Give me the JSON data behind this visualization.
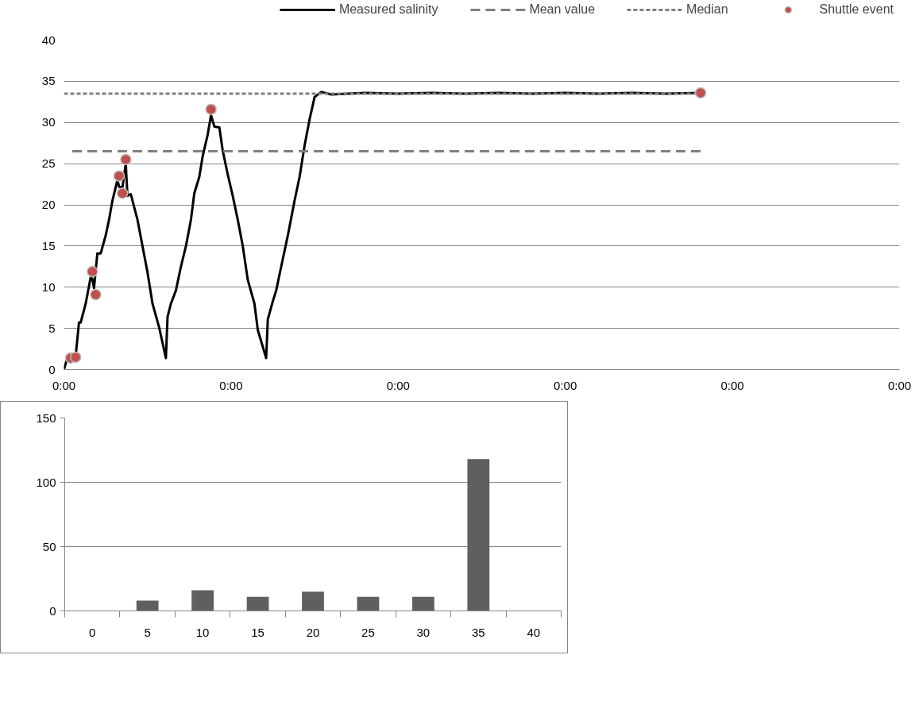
{
  "chart_data": [
    {
      "type": "line",
      "xlim": [
        0,
        5
      ],
      "ylim": [
        0,
        40
      ],
      "xticks": [
        {
          "value": 0,
          "label": "0:00"
        },
        {
          "value": 1,
          "label": "0:00"
        },
        {
          "value": 2,
          "label": "0:00"
        },
        {
          "value": 3,
          "label": "0:00"
        },
        {
          "value": 4,
          "label": "0:00"
        },
        {
          "value": 5,
          "label": "0:00"
        }
      ],
      "yticks": [
        0,
        5,
        10,
        15,
        20,
        25,
        30,
        35,
        40
      ],
      "grid": "y",
      "legend": "top",
      "series": [
        {
          "name": "Measured salinity",
          "type": "line",
          "color": "#000000",
          "line_style": "solid",
          "marker": "none",
          "x": [
            0.0,
            0.02,
            0.07,
            0.09,
            0.1,
            0.13,
            0.16,
            0.17,
            0.18,
            0.2,
            0.22,
            0.25,
            0.27,
            0.29,
            0.32,
            0.33,
            0.35,
            0.37,
            0.38,
            0.4,
            0.44,
            0.47,
            0.5,
            0.53,
            0.57,
            0.61,
            0.62,
            0.64,
            0.67,
            0.7,
            0.73,
            0.76,
            0.78,
            0.81,
            0.83,
            0.86,
            0.88,
            0.9,
            0.93,
            0.95,
            0.98,
            1.01,
            1.04,
            1.07,
            1.1,
            1.14,
            1.16,
            1.21,
            1.22,
            1.25,
            1.27,
            1.3,
            1.34,
            1.38,
            1.41,
            1.44,
            1.47,
            1.5,
            1.54,
            1.6,
            1.8,
            2.0,
            2.2,
            2.4,
            2.6,
            2.8,
            3.0,
            3.2,
            3.4,
            3.6,
            3.81
          ],
          "values": [
            0,
            1.4,
            1.6,
            5.7,
            5.7,
            8.0,
            11.2,
            11.0,
            9.9,
            14.1,
            14.1,
            16.3,
            18.2,
            20.5,
            23.0,
            22.2,
            22.1,
            25.0,
            21.1,
            21.3,
            18.2,
            15.0,
            11.8,
            8.0,
            5.1,
            1.4,
            6.4,
            8.0,
            9.6,
            12.5,
            15.0,
            18.2,
            21.4,
            23.4,
            25.9,
            28.5,
            30.9,
            29.5,
            29.4,
            26.6,
            23.7,
            21.1,
            18.2,
            15.0,
            10.9,
            8.0,
            4.8,
            1.4,
            6.1,
            8.3,
            9.6,
            12.5,
            16.3,
            20.5,
            23.4,
            27.2,
            30.4,
            33.1,
            33.7,
            33.4,
            33.6,
            33.5,
            33.6,
            33.5,
            33.6,
            33.5,
            33.6,
            33.5,
            33.6,
            33.5,
            33.6
          ]
        },
        {
          "name": "Mean value",
          "type": "line",
          "color": "#808080",
          "line_style": "dashed",
          "marker": "none",
          "x": [
            0.05,
            3.81
          ],
          "values": [
            26.5,
            26.5
          ]
        },
        {
          "name": "Median",
          "type": "line",
          "color": "#808080",
          "line_style": "dotted",
          "marker": "none",
          "x": [
            0.0,
            3.81
          ],
          "values": [
            33.5,
            33.5
          ]
        },
        {
          "name": "Shuttle event",
          "type": "scatter",
          "color": "#c0504d",
          "marker": "circle",
          "x": [
            0.04,
            0.07,
            0.17,
            0.19,
            0.33,
            0.35,
            0.37,
            0.88,
            3.81
          ],
          "values": [
            1.4,
            1.5,
            11.9,
            9.1,
            23.5,
            21.4,
            25.5,
            31.6,
            33.6
          ]
        }
      ]
    },
    {
      "type": "bar",
      "categories": [
        "0",
        "5",
        "10",
        "15",
        "20",
        "25",
        "30",
        "35",
        "40"
      ],
      "values": [
        0,
        8,
        16,
        11,
        15,
        11,
        11,
        118,
        0
      ],
      "color": "#5f5f5f",
      "ylim": [
        0,
        150
      ],
      "yticks": [
        0,
        50,
        100,
        150
      ],
      "grid": "y",
      "legend": false
    }
  ]
}
